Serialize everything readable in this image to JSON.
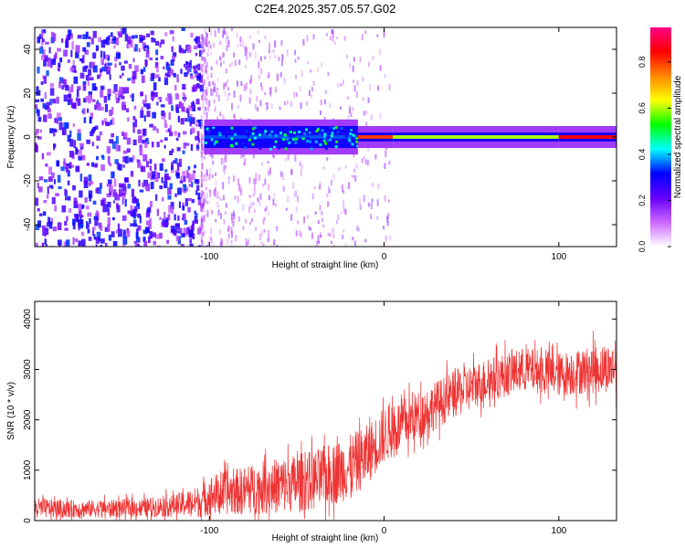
{
  "title": "C2E4.2025.357.05.57.G02",
  "chart_data": [
    {
      "type": "heatmap",
      "xlabel": "Height of straight line (km)",
      "ylabel": "Frequency (Hz)",
      "xlim": [
        -200,
        133
      ],
      "ylim": [
        -50,
        50
      ],
      "xticks": [
        -100,
        0,
        100
      ],
      "xtick_labels": [
        "-100",
        "0",
        "100"
      ],
      "yticks": [
        -40,
        -20,
        0,
        20,
        40
      ],
      "ytick_labels": [
        "-40",
        "-20",
        "0",
        "20",
        "40"
      ],
      "colorbar": {
        "label": "Normalized spectral amplitude",
        "range": [
          0,
          0.95
        ],
        "ticks": [
          0.0,
          0.2,
          0.4,
          0.6,
          0.8
        ],
        "tick_labels": [
          "0.0",
          "0.2",
          "0.4",
          "0.6",
          "0.8"
        ],
        "colors": [
          "#ffffff",
          "#cc66ff",
          "#6600ff",
          "#0000ff",
          "#00ffff",
          "#00ff00",
          "#ffff00",
          "#ff8800",
          "#ff0000",
          "#ff0088"
        ]
      },
      "band": {
        "center_hz": 0,
        "segments": [
          {
            "x_start": -103,
            "x_end": -15,
            "half_width_hz": 5,
            "level": 0.35
          },
          {
            "x_start": -15,
            "x_end": 5,
            "half_width_hz": 2,
            "level": 0.8
          },
          {
            "x_start": 5,
            "x_end": 100,
            "half_width_hz": 2,
            "level": 0.6
          },
          {
            "x_start": 100,
            "x_end": 133,
            "half_width_hz": 2,
            "level": 0.85
          }
        ],
        "noise_region_x": [
          -200,
          -105
        ]
      }
    },
    {
      "type": "line",
      "xlabel": "Height of straight line (km)",
      "ylabel": "SNR (10 * v/v)",
      "xlim": [
        -200,
        133
      ],
      "ylim": [
        0,
        4350
      ],
      "xticks": [
        -100,
        0,
        100
      ],
      "xtick_labels": [
        "-100",
        "0",
        "100"
      ],
      "yticks": [
        0,
        1000,
        2000,
        3000,
        4000
      ],
      "ytick_labels": [
        "0",
        "1000",
        "2000",
        "3000",
        "4000"
      ],
      "color": "#ee3333",
      "x": [
        -200,
        -180,
        -160,
        -140,
        -120,
        -105,
        -100,
        -80,
        -60,
        -40,
        -20,
        -10,
        0,
        10,
        20,
        40,
        60,
        80,
        100,
        120,
        133
      ],
      "y_mean": [
        250,
        230,
        240,
        250,
        300,
        380,
        500,
        600,
        700,
        800,
        1050,
        1300,
        1700,
        1900,
        2100,
        2500,
        2800,
        3000,
        2900,
        3000,
        3050
      ],
      "y_amplitude": [
        250,
        220,
        220,
        230,
        280,
        400,
        500,
        600,
        700,
        750,
        800,
        750,
        700,
        650,
        600,
        600,
        550,
        550,
        550,
        600,
        600
      ]
    }
  ]
}
